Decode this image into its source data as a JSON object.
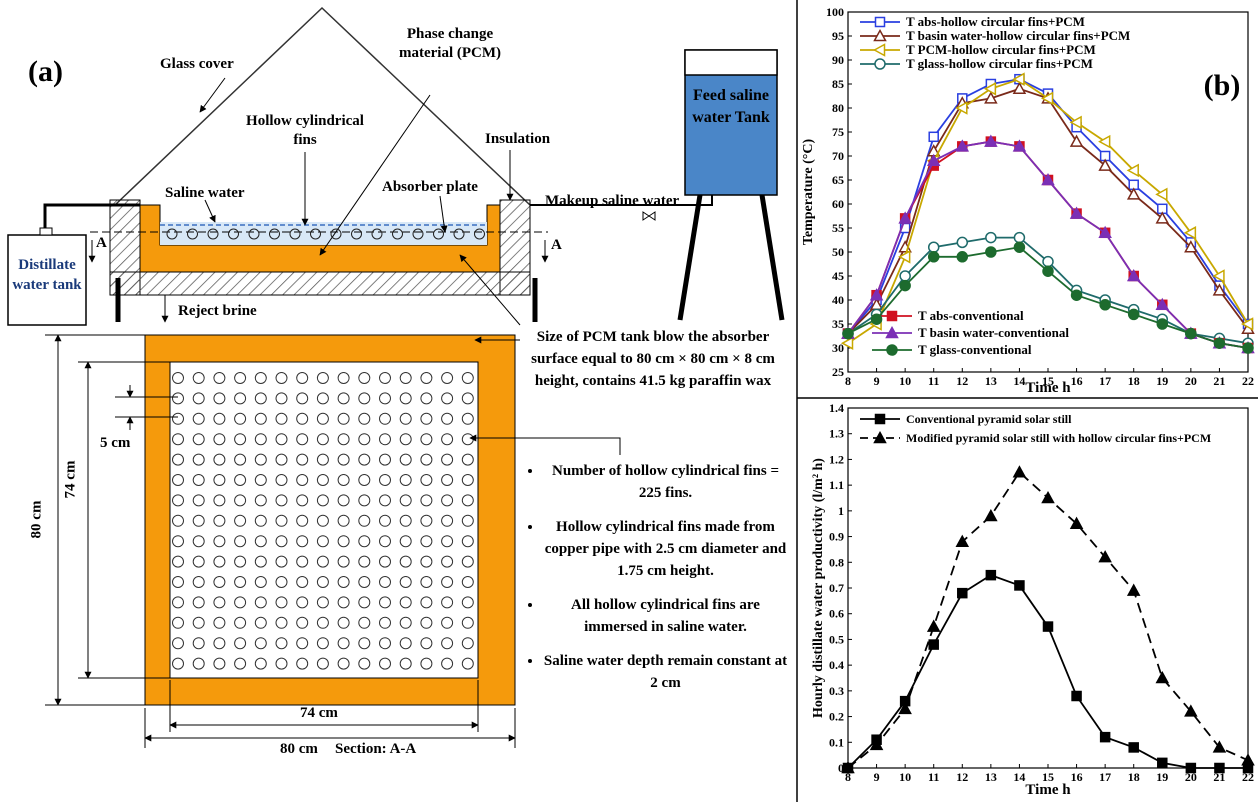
{
  "diagram": {
    "panel": "(a)",
    "glass_cover": "Glass cover",
    "pcm": "Phase change material (PCM)",
    "fins": "Hollow cylindrical fins",
    "insulation": "Insulation",
    "saline_water": "Saline water",
    "absorber_plate": "Absorber plate",
    "makeup": "Makeup saline water",
    "feed_tank": "Feed saline water Tank",
    "distillate_tank": "Distillate water tank",
    "section_mark_left": "A",
    "section_mark_right": "A",
    "reject_brine": "Reject brine",
    "pcm_tank_size": "Size of PCM tank blow the absorber surface equal to 80 cm × 80 cm × 8 cm height, contains 41.5 kg paraffin wax",
    "dim_spacing": "5 cm",
    "dim_outer_vertical": "80 cm",
    "dim_inner_vertical": "74 cm",
    "dim_inner_horizontal": "74 cm",
    "dim_outer_horizontal": "80 cm",
    "section_label": "Section: A-A",
    "notes": [
      "Number of hollow cylindrical fins = 225 fins.",
      "Hollow cylindrical fins made from copper pipe with 2.5 cm diameter and 1.75 cm height.",
      "All hollow cylindrical fins are immersed in saline water.",
      "Saline water depth remain constant at 2 cm"
    ]
  },
  "chart_data": [
    {
      "type": "line",
      "annotation": "(b)",
      "xlabel": "Time h",
      "ylabel": "Temperature (°C)",
      "x": [
        8,
        9,
        10,
        11,
        12,
        13,
        14,
        15,
        16,
        17,
        18,
        19,
        20,
        21,
        22
      ],
      "xlim": [
        8,
        22
      ],
      "xticks": [
        8,
        9,
        10,
        11,
        12,
        13,
        14,
        15,
        16,
        17,
        18,
        19,
        20,
        21,
        22
      ],
      "ylim": [
        25,
        100
      ],
      "yticks": [
        25,
        30,
        35,
        40,
        45,
        50,
        55,
        60,
        65,
        70,
        75,
        80,
        85,
        90,
        95,
        100
      ],
      "series": [
        {
          "name": "T abs-hollow circular fins+PCM",
          "color": "#2a3fe0",
          "marker": "square",
          "filled": false,
          "values": [
            33,
            40,
            55,
            74,
            82,
            85,
            86,
            83,
            76,
            70,
            64,
            59,
            52,
            43,
            35
          ]
        },
        {
          "name": "T basin water-hollow circular fins+PCM",
          "color": "#7a2a1a",
          "marker": "triangle",
          "filled": false,
          "values": [
            33,
            39,
            51,
            71,
            81,
            82,
            84,
            82,
            73,
            68,
            62,
            57,
            51,
            42,
            34
          ]
        },
        {
          "name": "T PCM-hollow circular fins+PCM",
          "color": "#c8a800",
          "marker": "triangle-left",
          "filled": false,
          "values": [
            31,
            35,
            49,
            69,
            80,
            84,
            86,
            82,
            77,
            73,
            67,
            62,
            54,
            45,
            35
          ]
        },
        {
          "name": "T glass-hollow circular fins+PCM",
          "color": "#1f6b6b",
          "marker": "circle",
          "filled": false,
          "values": [
            33,
            37,
            45,
            51,
            52,
            53,
            53,
            48,
            42,
            40,
            38,
            36,
            33,
            32,
            31
          ]
        },
        {
          "name": "T abs-conventional",
          "color": "#d01020",
          "marker": "square",
          "filled": true,
          "values": [
            33,
            41,
            57,
            68,
            72,
            73,
            72,
            65,
            58,
            54,
            45,
            39,
            33,
            31,
            30
          ]
        },
        {
          "name": "T basin water-conventional",
          "color": "#7b2fb5",
          "marker": "triangle",
          "filled": true,
          "values": [
            33,
            41,
            57,
            69,
            72,
            73,
            72,
            65,
            58,
            54,
            45,
            39,
            33,
            31,
            30
          ]
        },
        {
          "name": "T glass-conventional",
          "color": "#1d6b2e",
          "marker": "circle",
          "filled": true,
          "values": [
            33,
            36,
            43,
            49,
            49,
            50,
            51,
            46,
            41,
            39,
            37,
            35,
            33,
            31,
            30
          ]
        }
      ]
    },
    {
      "type": "line",
      "xlabel": "Time h",
      "ylabel": "Hourly distillate water productivity (l/m² h)",
      "x": [
        8,
        9,
        10,
        11,
        12,
        13,
        14,
        15,
        16,
        17,
        18,
        19,
        20,
        21,
        22
      ],
      "xlim": [
        8,
        22
      ],
      "xticks": [
        8,
        9,
        10,
        11,
        12,
        13,
        14,
        15,
        16,
        17,
        18,
        19,
        20,
        21,
        22
      ],
      "ylim": [
        0,
        1.4
      ],
      "yticks": [
        0,
        0.1,
        0.2,
        0.3,
        0.4,
        0.5,
        0.6,
        0.7,
        0.8,
        0.9,
        1,
        1.1,
        1.2,
        1.3,
        1.4
      ],
      "series": [
        {
          "name": "Conventional pyramid solar still",
          "color": "#000000",
          "marker": "square",
          "filled": true,
          "dashed": false,
          "values": [
            0,
            0.11,
            0.26,
            0.48,
            0.68,
            0.75,
            0.71,
            0.55,
            0.28,
            0.12,
            0.08,
            0.02,
            0,
            0,
            0
          ]
        },
        {
          "name": "Modified pyramid solar still with hollow circular fins+PCM",
          "color": "#000000",
          "marker": "triangle",
          "filled": true,
          "dashed": true,
          "values": [
            0,
            0.09,
            0.23,
            0.55,
            0.88,
            0.98,
            1.15,
            1.05,
            0.95,
            0.82,
            0.69,
            0.35,
            0.22,
            0.08,
            0.03
          ]
        }
      ]
    }
  ]
}
